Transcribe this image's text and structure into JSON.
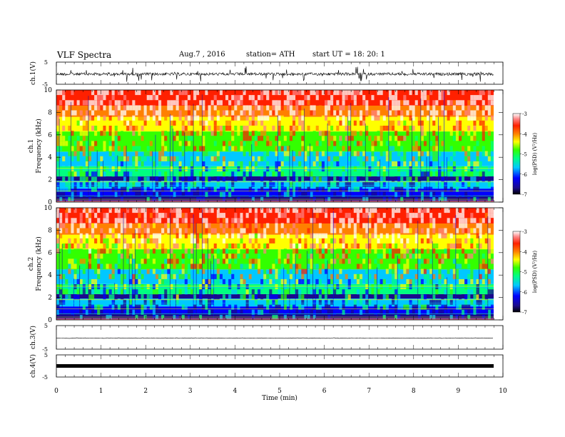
{
  "header": {
    "title": "VLF  Spectra",
    "date": "Aug.7  , 2016",
    "station": "station= ATH",
    "start": "start  UT  =   18: 20: 1"
  },
  "colors": {
    "colormap": [
      "#1a0a8c",
      "#0000ff",
      "#00c8ff",
      "#00ff80",
      "#33ff00",
      "#ffff00",
      "#ff8000",
      "#ff2000",
      "#ff8080",
      "#ffffff"
    ]
  },
  "chart_data": [
    {
      "type": "line",
      "panel": "ch1-waveform",
      "ylabel": "ch.1(V)",
      "ylim": [
        -5,
        5
      ],
      "yticks": [
        "5",
        "-5"
      ],
      "xlim": [
        0,
        10
      ],
      "description_level": -0.4,
      "x": [
        0,
        9.8
      ]
    },
    {
      "type": "heatmap",
      "panel": "ch1-spectrogram",
      "ylabel": "ch.1",
      "ylabel2": "Frequency  (kHz)",
      "ylim": [
        0,
        10
      ],
      "yticks": [
        "0",
        "2",
        "4",
        "6",
        "8",
        "10"
      ],
      "xlim": [
        0,
        10
      ],
      "data_extent_x": [
        0,
        9.8
      ],
      "colorbar": {
        "label": "log(PSD) (V²/Hz)",
        "range": [
          -7,
          -3
        ],
        "ticks": [
          "-3",
          "-4",
          "-5",
          "-6",
          "-7"
        ]
      }
    },
    {
      "type": "heatmap",
      "panel": "ch2-spectrogram",
      "ylabel": "ch.2",
      "ylabel2": "Frequency  (kHz)",
      "ylim": [
        0,
        10
      ],
      "yticks": [
        "0",
        "2",
        "4",
        "6",
        "8",
        "10"
      ],
      "xlim": [
        0,
        10
      ],
      "data_extent_x": [
        0,
        9.8
      ],
      "colorbar": {
        "label": "log(PSD) (V²/Hz)",
        "range": [
          -7,
          -3
        ],
        "ticks": [
          "-3",
          "-4",
          "-5",
          "-6",
          "-7"
        ]
      }
    },
    {
      "type": "line",
      "panel": "ch3-waveform",
      "ylabel": "ch.3(V)",
      "ylim": [
        -5,
        5
      ],
      "yticks": [
        "5",
        "-5"
      ],
      "xlim": [
        0,
        10
      ],
      "level": 0
    },
    {
      "type": "line",
      "panel": "ch4-waveform",
      "ylabel": "ch.4(V)",
      "ylim": [
        -5,
        5
      ],
      "yticks": [
        "5",
        "-5"
      ],
      "xlim": [
        0,
        10
      ],
      "level": 0
    }
  ],
  "xaxis": {
    "label": "Time  (min)",
    "ticks": [
      "0",
      "1",
      "2",
      "3",
      "4",
      "5",
      "6",
      "7",
      "8",
      "9",
      "10"
    ]
  }
}
